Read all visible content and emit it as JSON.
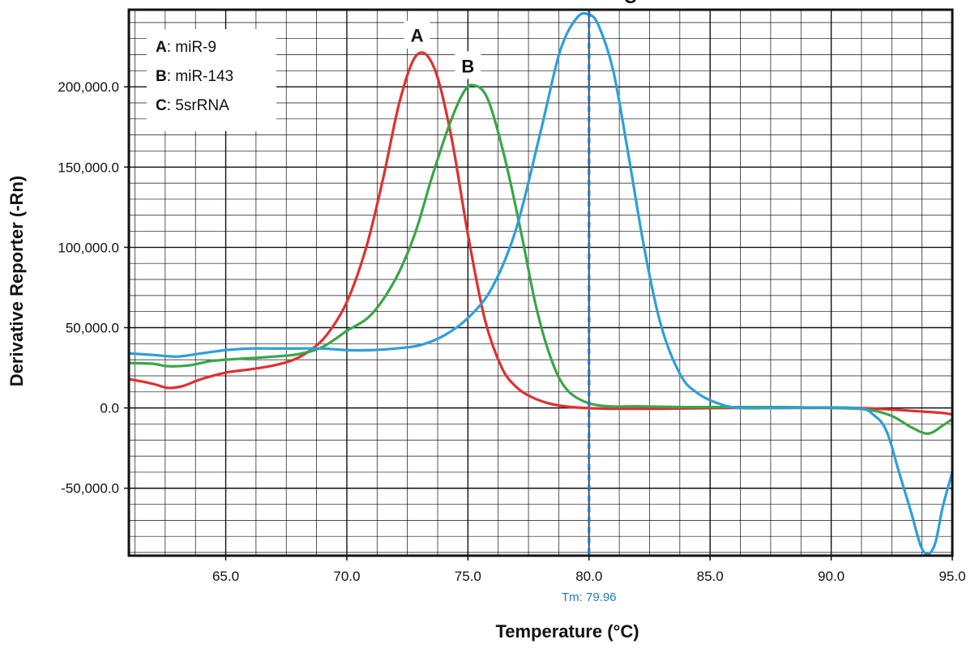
{
  "chart_data": {
    "type": "line",
    "xlabel": "Temperature (°C)",
    "ylabel": "Derivative Reporter (-Rn)",
    "xlim": [
      61.0,
      95.0
    ],
    "ylim": [
      -92000,
      248000
    ],
    "x_ticks": [
      65.0,
      70.0,
      75.0,
      80.0,
      85.0,
      90.0,
      95.0
    ],
    "x_tick_labels": [
      "65.0",
      "70.0",
      "75.0",
      "80.0",
      "85.0",
      "90.0",
      "95.0"
    ],
    "y_ticks": [
      -50000,
      0,
      50000,
      100000,
      150000,
      200000
    ],
    "y_tick_labels": [
      "-50,000.0",
      "0.0",
      "50,000.0",
      "100,000.0",
      "150,000.0",
      "200,000.0"
    ],
    "grid": true,
    "legend_position": "top-left",
    "legend": [
      {
        "key": "A",
        "text": ": miR-9"
      },
      {
        "key": "B",
        "text": ": miR-143"
      },
      {
        "key": "C",
        "text": ": 5srRNA"
      }
    ],
    "vline": {
      "x": 80.0,
      "label": "Tm: 79.96",
      "color": "#1f78c8"
    },
    "series": [
      {
        "label": "A",
        "label_at": [
          72.9,
          232000
        ],
        "color": "#e03030",
        "x": [
          61.0,
          62.0,
          62.6,
          63.2,
          64.0,
          65.0,
          66.0,
          67.0,
          67.8,
          68.5,
          69.2,
          70.0,
          70.8,
          71.5,
          72.2,
          72.9,
          73.6,
          74.3,
          75.0,
          75.7,
          76.4,
          77.0,
          77.6,
          78.3,
          79.0,
          79.8,
          81.0,
          83.0,
          86.0,
          89.0,
          91.0,
          92.5,
          93.5,
          94.5,
          95.0
        ],
        "y": [
          18000,
          15000,
          12500,
          13500,
          18000,
          22000,
          24000,
          26500,
          30000,
          36000,
          46000,
          66000,
          100000,
          143000,
          192000,
          220000,
          212000,
          170000,
          108000,
          55000,
          25000,
          13000,
          7000,
          3000,
          1000,
          0,
          -500,
          -500,
          0,
          0,
          0,
          -1000,
          -2000,
          -3000,
          -4000
        ]
      },
      {
        "label": "B",
        "label_at": [
          75.0,
          213000
        ],
        "color": "#3aa648",
        "x": [
          61.0,
          62.0,
          62.6,
          63.5,
          64.3,
          65.0,
          66.0,
          67.0,
          68.0,
          69.0,
          70.0,
          71.0,
          72.0,
          72.8,
          73.5,
          74.2,
          74.8,
          75.2,
          75.8,
          76.5,
          77.2,
          77.8,
          78.4,
          79.0,
          79.8,
          80.8,
          82.0,
          84.0,
          86.0,
          88.0,
          90.0,
          91.5,
          92.5,
          93.3,
          94.0,
          94.6,
          95.0
        ],
        "y": [
          28000,
          27500,
          26000,
          26500,
          29000,
          30000,
          31000,
          32000,
          33500,
          38000,
          48000,
          58000,
          80000,
          108000,
          143000,
          175000,
          196000,
          201000,
          193000,
          157000,
          109000,
          64000,
          32000,
          13000,
          4000,
          1000,
          1000,
          500,
          500,
          500,
          0,
          -1000,
          -5000,
          -12000,
          -16000,
          -11000,
          -7000
        ]
      },
      {
        "label": "C",
        "label_at": [
          81.7,
          256000
        ],
        "color": "#2f9fd8",
        "x": [
          61.0,
          62.0,
          63.0,
          64.0,
          65.0,
          66.0,
          67.0,
          68.0,
          69.0,
          70.0,
          71.0,
          72.0,
          73.0,
          74.0,
          75.0,
          76.0,
          77.0,
          78.0,
          78.8,
          79.5,
          80.0,
          80.4,
          81.0,
          81.6,
          82.3,
          83.0,
          83.8,
          84.5,
          85.3,
          86.2,
          88.0,
          91.0,
          91.8,
          92.3,
          92.8,
          93.3,
          93.7,
          94.0,
          94.3,
          94.6,
          95.0
        ],
        "y": [
          34000,
          33000,
          32000,
          34000,
          36000,
          37000,
          37000,
          37000,
          37000,
          36000,
          36000,
          37000,
          39000,
          45000,
          56000,
          75000,
          112000,
          172000,
          222000,
          243000,
          245000,
          238000,
          210000,
          160000,
          98000,
          50000,
          20000,
          9000,
          3000,
          0,
          0,
          0,
          -5000,
          -15000,
          -40000,
          -65000,
          -86000,
          -91000,
          -84000,
          -62000,
          -40000
        ]
      }
    ]
  }
}
